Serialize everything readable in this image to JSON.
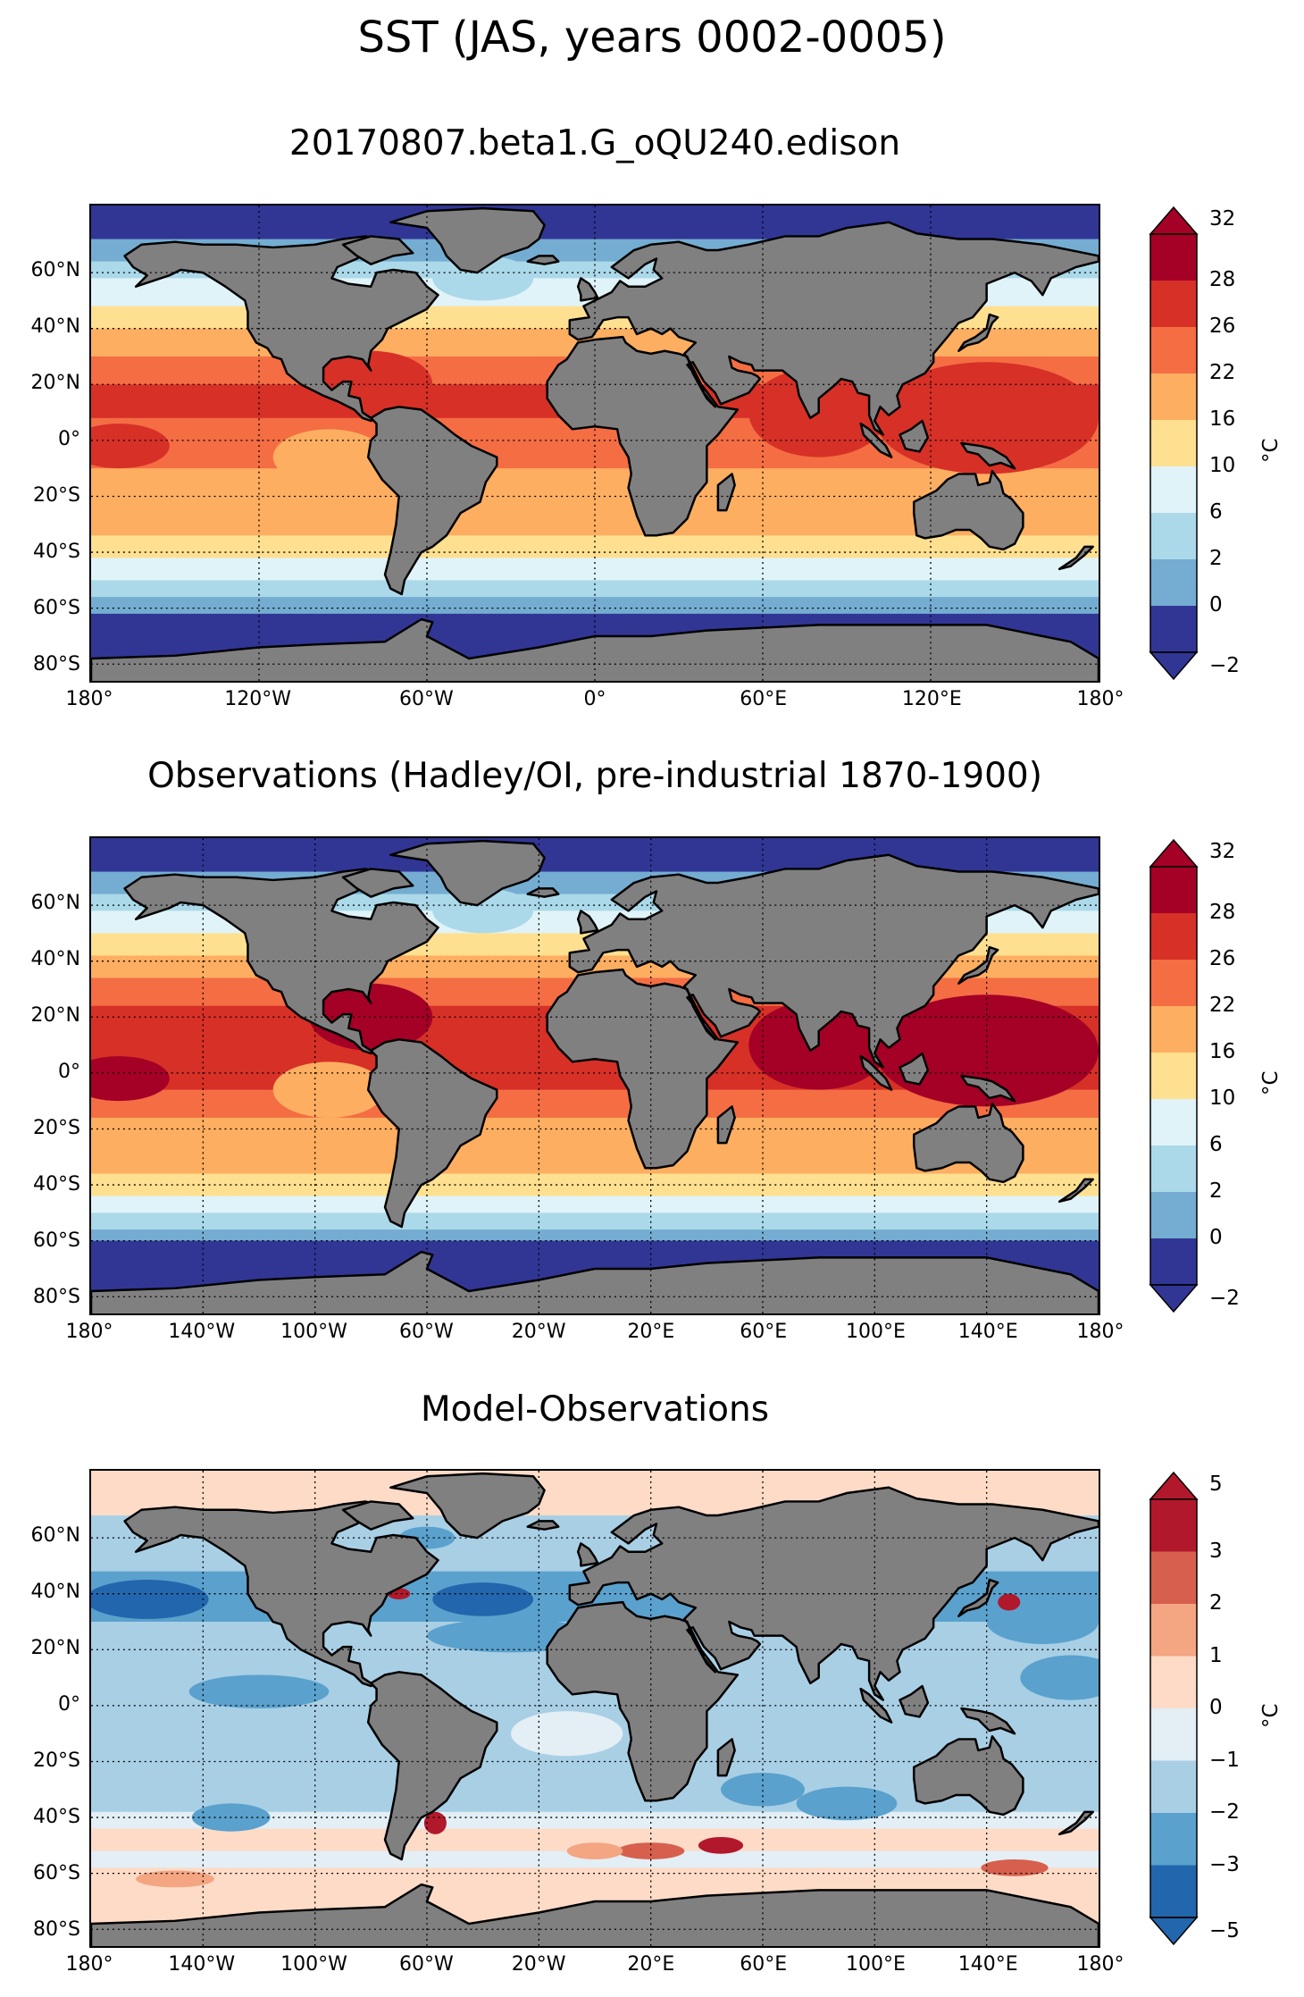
{
  "title": "SST (JAS, years 0002-0005)",
  "panels": [
    {
      "title": "20170807.beta1.G_oQU240.edison",
      "lat_labels": [
        "60°N",
        "40°N",
        "20°N",
        "0°",
        "20°S",
        "40°S",
        "60°S",
        "80°S"
      ],
      "lon_labels": [
        "180°",
        "120°W",
        "60°W",
        "0°",
        "60°E",
        "120°E",
        "180°"
      ],
      "colorbar": {
        "ticks": [
          "32",
          "28",
          "26",
          "22",
          "16",
          "10",
          "6",
          "2",
          "0",
          "−2"
        ],
        "unit": "°C",
        "colors": [
          "#a50026",
          "#d73027",
          "#f46d43",
          "#fdae61",
          "#fee090",
          "#e0f3f8",
          "#abd9e9",
          "#74add1",
          "#313695"
        ]
      }
    },
    {
      "title": "Observations (Hadley/OI, pre-industrial 1870-1900)",
      "lat_labels": [
        "60°N",
        "40°N",
        "20°N",
        "0°",
        "20°S",
        "40°S",
        "60°S",
        "80°S"
      ],
      "lon_labels": [
        "180°",
        "140°W",
        "100°W",
        "60°W",
        "20°W",
        "20°E",
        "60°E",
        "100°E",
        "140°E",
        "180°"
      ],
      "colorbar": {
        "ticks": [
          "32",
          "28",
          "26",
          "22",
          "16",
          "10",
          "6",
          "2",
          "0",
          "−2"
        ],
        "unit": "°C",
        "colors": [
          "#a50026",
          "#d73027",
          "#f46d43",
          "#fdae61",
          "#fee090",
          "#e0f3f8",
          "#abd9e9",
          "#74add1",
          "#313695"
        ]
      }
    },
    {
      "title": "Model-Observations",
      "lat_labels": [
        "60°N",
        "40°N",
        "20°N",
        "0°",
        "20°S",
        "40°S",
        "60°S",
        "80°S"
      ],
      "lon_labels": [
        "180°",
        "140°W",
        "100°W",
        "60°W",
        "20°W",
        "20°E",
        "60°E",
        "100°E",
        "140°E",
        "180°"
      ],
      "colorbar": {
        "ticks": [
          "5",
          "3",
          "2",
          "1",
          "0",
          "−1",
          "−2",
          "−3",
          "−5"
        ],
        "unit": "°C",
        "colors": [
          "#b2182b",
          "#d6604d",
          "#f4a582",
          "#fddbc7",
          "#e3eef5",
          "#a9cfe5",
          "#5aa1cd",
          "#2266ad"
        ]
      }
    }
  ]
}
